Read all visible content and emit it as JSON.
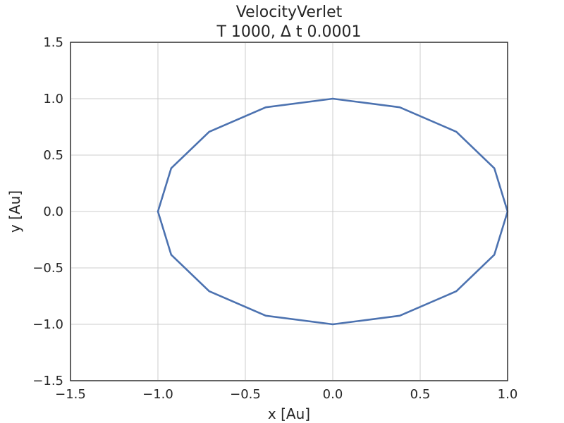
{
  "chart_data": {
    "type": "line",
    "title": "VelocityVerlet",
    "subtitle": "T 1000, Δ t 0.0001",
    "xlabel": "x [Au]",
    "ylabel": "y [Au]",
    "xlim": [
      -1.5,
      1.0
    ],
    "ylim": [
      -1.5,
      1.5
    ],
    "xticks": [
      -1.5,
      -1.0,
      -0.5,
      0.0,
      0.5,
      1.0
    ],
    "yticks": [
      -1.5,
      -1.0,
      -0.5,
      0.0,
      0.5,
      1.0,
      1.5
    ],
    "xtick_labels": [
      "−1.5",
      "−1.0",
      "−0.5",
      "0.0",
      "0.5",
      "1.0"
    ],
    "ytick_labels": [
      "−1.5",
      "−1.0",
      "−0.5",
      "0.0",
      "0.5",
      "1.0",
      "1.5"
    ],
    "grid": true,
    "series": [
      {
        "color": "#4c72b0",
        "x": [
          1.0,
          0.924,
          0.707,
          0.383,
          0.0,
          -0.383,
          -0.707,
          -0.924,
          -1.0,
          -0.924,
          -0.707,
          -0.383,
          0.0,
          0.383,
          0.707,
          0.924,
          1.0
        ],
        "y": [
          0.0,
          0.383,
          0.707,
          0.924,
          1.0,
          0.924,
          0.707,
          0.383,
          0.0,
          -0.383,
          -0.707,
          -0.924,
          -1.0,
          -0.924,
          -0.707,
          -0.383,
          0.0
        ]
      }
    ]
  }
}
